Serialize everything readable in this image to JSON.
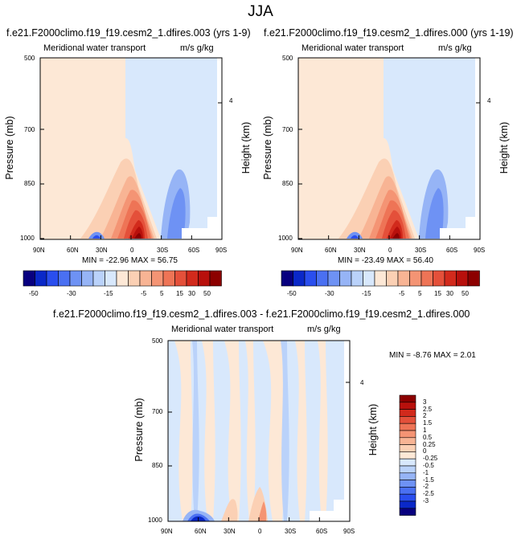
{
  "title": "JJA",
  "colors": {
    "neg": [
      "#08007f",
      "#0a28c8",
      "#2a4eee",
      "#4a70f2",
      "#6e92f4",
      "#96b4f6",
      "#bad2fa",
      "#d8e8fc"
    ],
    "pos": [
      "#fde8d6",
      "#fbd0b4",
      "#f8b494",
      "#f49474",
      "#ee7456",
      "#e4503a",
      "#d22a1c",
      "#b8100c",
      "#8c0000"
    ]
  },
  "chart_data": [
    {
      "type": "heatmap",
      "title": "f.e21.F2000climo.f19_f19.cesm2_1.dfires.003 (yrs 1-9)",
      "left_string": "Meridional water transport",
      "right_string": "m/s g/kg",
      "ylabel": "Pressure (mb)",
      "ylabel_right": "Height (km)",
      "x_ticks": [
        "90N",
        "60N",
        "30N",
        "0",
        "30S",
        "60S",
        "90S"
      ],
      "y_ticks": [
        "500",
        "700",
        "850",
        "1000"
      ],
      "y_right_ticks": [
        "4"
      ],
      "ylim": [
        1000,
        500
      ],
      "min_max": "MIN = -22.96   MAX = 56.75",
      "extremes": {
        "min": -22.96,
        "max": 56.75
      }
    },
    {
      "type": "heatmap",
      "title": "f.e21.F2000climo.f19_f19.cesm2_1.dfires.000 (yrs 1-19)",
      "left_string": "Meridional water transport",
      "right_string": "m/s g/kg",
      "ylabel": "Pressure (mb)",
      "ylabel_right": "Height (km)",
      "x_ticks": [
        "90N",
        "60N",
        "30N",
        "0",
        "30S",
        "60S",
        "90S"
      ],
      "y_ticks": [
        "500",
        "700",
        "850",
        "1000"
      ],
      "y_right_ticks": [
        "4"
      ],
      "ylim": [
        1000,
        500
      ],
      "min_max": "MIN = -23.49   MAX = 56.40",
      "extremes": {
        "min": -23.49,
        "max": 56.4
      }
    },
    {
      "type": "heatmap",
      "title": "f.e21.F2000climo.f19_f19.cesm2_1.dfires.003 - f.e21.F2000climo.f19_f19.cesm2_1.dfires.000",
      "left_string": "Meridional water transport",
      "right_string": "m/s g/kg",
      "ylabel": "Pressure (mb)",
      "ylabel_right": "Height (km)",
      "x_ticks": [
        "90N",
        "60N",
        "30N",
        "0",
        "30S",
        "60S",
        "90S"
      ],
      "y_ticks": [
        "500",
        "700",
        "850",
        "1000"
      ],
      "y_right_ticks": [
        "4"
      ],
      "ylim": [
        1000,
        500
      ],
      "min_max": "MIN =  -8.76   MAX =   2.01",
      "extremes": {
        "min": -8.76,
        "max": 2.01
      }
    }
  ],
  "colorbar_top": {
    "orientation": "horizontal",
    "labels": [
      "-50",
      "-30",
      "-15",
      "-5",
      "5",
      "15",
      "30",
      "50"
    ]
  },
  "colorbar_bottom": {
    "orientation": "vertical",
    "labels": [
      "3",
      "2.5",
      "2",
      "1.5",
      "1",
      "0.5",
      "0.25",
      "0",
      "-0.25",
      "-0.5",
      "-1",
      "-1.5",
      "-2",
      "-2.5",
      "-3"
    ]
  }
}
